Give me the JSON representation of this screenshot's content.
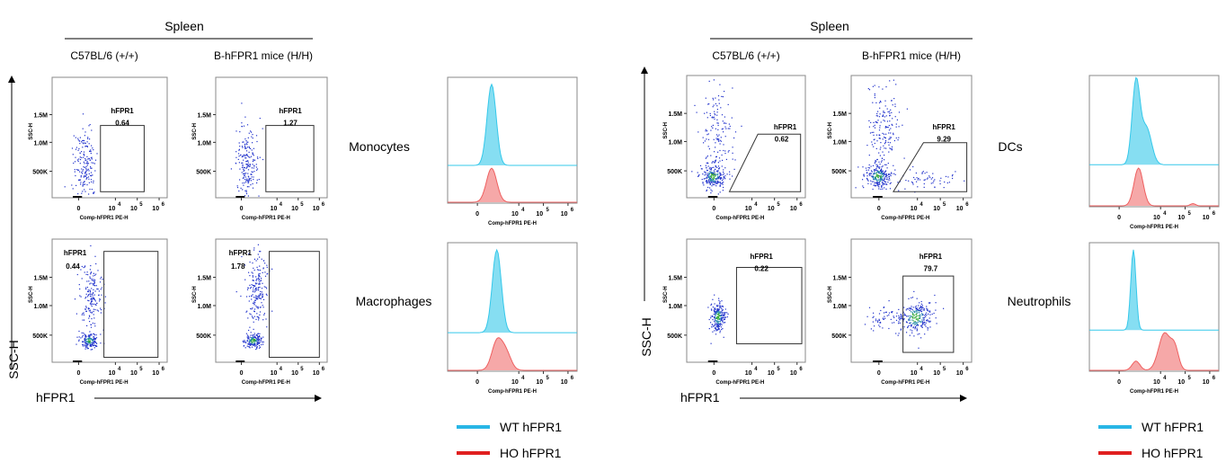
{
  "panels": [
    {
      "tissue": "Spleen",
      "strains": [
        "C57BL/6 (+/+)",
        "B-hFPR1 mice (H/H)"
      ],
      "axis_y_label": "SSC-H",
      "axis_x_label": "hFPR1",
      "rows": [
        {
          "cell_type": "Monocytes",
          "plots": [
            {
              "gate_label": "hFPR1",
              "gate_value": "0.64"
            },
            {
              "gate_label": "hFPR1",
              "gate_value": "1.27"
            }
          ]
        },
        {
          "cell_type": "Macrophages",
          "plots": [
            {
              "gate_label": "hFPR1",
              "gate_value": "0.44"
            },
            {
              "gate_label": "hFPR1",
              "gate_value": "1.78"
            }
          ]
        }
      ],
      "legend": [
        {
          "label": "WT hFPR1",
          "color": "#29b6e6"
        },
        {
          "label": "HO hFPR1",
          "color": "#e02020"
        }
      ]
    },
    {
      "tissue": "Spleen",
      "strains": [
        "C57BL/6 (+/+)",
        "B-hFPR1 mice (H/H)"
      ],
      "axis_y_label": "SSC-H",
      "axis_x_label": "hFPR1",
      "rows": [
        {
          "cell_type": "DCs",
          "plots": [
            {
              "gate_label": "hFPR1",
              "gate_value": "0.62"
            },
            {
              "gate_label": "hFPR1",
              "gate_value": "9.29"
            }
          ]
        },
        {
          "cell_type": "Neutrophils",
          "plots": [
            {
              "gate_label": "hFPR1",
              "gate_value": "0.22"
            },
            {
              "gate_label": "hFPR1",
              "gate_value": "79.7"
            }
          ]
        }
      ],
      "legend": [
        {
          "label": "WT hFPR1",
          "color": "#29b6e6"
        },
        {
          "label": "HO hFPR1",
          "color": "#e02020"
        }
      ]
    }
  ],
  "scatter_axes": {
    "x_title": "Comp-hFPR1 PE-H",
    "y_title": "SSC-H",
    "y_ticks": [
      "1.5M",
      "1.0M",
      "500K"
    ],
    "x_ticks": [
      "0",
      "10",
      "4",
      "10",
      "5",
      "10",
      "6"
    ]
  },
  "histogram_axes": {
    "x_title": "Comp-hFPR1 PE-H",
    "x_ticks": [
      "0",
      "10",
      "4",
      "10",
      "5",
      "10",
      "6"
    ]
  },
  "chart_data": {
    "type": "scatter",
    "gate_percentages": {
      "Monocytes": {
        "C57BL/6 (+/+)": 0.64,
        "B-hFPR1 mice (H/H)": 1.27
      },
      "Macrophages": {
        "C57BL/6 (+/+)": 0.44,
        "B-hFPR1 mice (H/H)": 1.78
      },
      "DCs": {
        "C57BL/6 (+/+)": 0.62,
        "B-hFPR1 mice (H/H)": 9.29
      },
      "Neutrophils": {
        "C57BL/6 (+/+)": 0.22,
        "B-hFPR1 mice (H/H)": 79.7
      }
    }
  }
}
